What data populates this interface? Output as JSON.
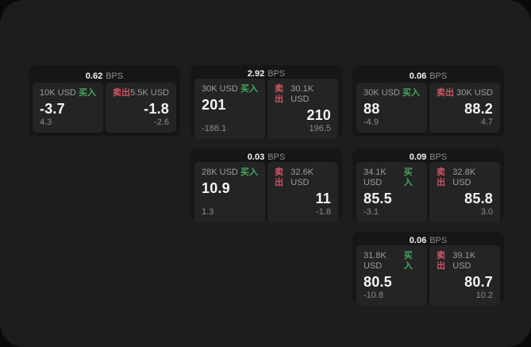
{
  "colors": {
    "backdrop": "#0a0a0a",
    "window_bg": "#1d1d1d",
    "card_bg": "#161616",
    "panel_bg": "#242424",
    "buy_green": "#46a65f",
    "sell_red": "#cf5666",
    "text_primary": "#f5f5f5",
    "text_muted": "#8b8b8b"
  },
  "cards": [
    {
      "bps_value": "0.62",
      "bps_unit": "BPS",
      "buy": {
        "size": "10K USD",
        "side": "买入",
        "value": "-3.7",
        "delta": "4.3"
      },
      "sell": {
        "side": "卖出",
        "size": "5.5K USD",
        "value": "-1.8",
        "delta": "-2.6"
      }
    },
    {
      "bps_value": "2.92",
      "bps_unit": "BPS",
      "buy": {
        "size": "30K USD",
        "side": "买入",
        "value": "201",
        "delta": "-188.1"
      },
      "sell": {
        "side": "卖出",
        "size": "30.1K USD",
        "value": "210",
        "delta": "196.5"
      }
    },
    {
      "bps_value": "0.06",
      "bps_unit": "BPS",
      "buy": {
        "size": "30K USD",
        "side": "买入",
        "value": "88",
        "delta": "-4.9"
      },
      "sell": {
        "side": "卖出",
        "size": "30K USD",
        "value": "88.2",
        "delta": "4.7"
      }
    },
    {
      "bps_value": "0.03",
      "bps_unit": "BPS",
      "buy": {
        "size": "28K USD",
        "side": "买入",
        "value": "10.9",
        "delta": "1.3"
      },
      "sell": {
        "side": "卖出",
        "size": "32.6K USD",
        "value": "11",
        "delta": "-1.8"
      }
    },
    {
      "bps_value": "0.09",
      "bps_unit": "BPS",
      "buy": {
        "size": "34.1K USD",
        "side": "买入",
        "value": "85.5",
        "delta": "-3.1"
      },
      "sell": {
        "side": "卖出",
        "size": "32.8K USD",
        "value": "85.8",
        "delta": "3.0"
      }
    },
    {
      "bps_value": "0.06",
      "bps_unit": "BPS",
      "buy": {
        "size": "31.8K USD",
        "side": "买入",
        "value": "80.5",
        "delta": "-10.8"
      },
      "sell": {
        "side": "卖出",
        "size": "39.1K USD",
        "value": "80.7",
        "delta": "10.2"
      }
    }
  ]
}
